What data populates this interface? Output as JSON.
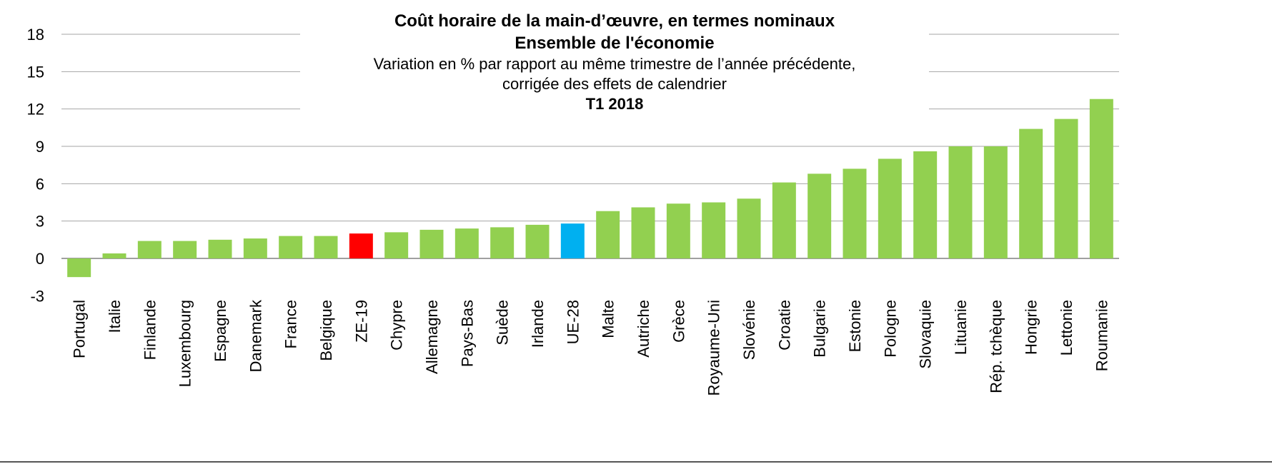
{
  "chart_data": {
    "type": "bar",
    "title": "Coût horaire de la main-d’œuvre, en termes nominaux",
    "subtitle_lines": [
      "Ensemble de l'économie",
      "Variation en % par rapport au même trimestre de l’année précédente,",
      "corrigée des effets de calendrier",
      "T1 2018"
    ],
    "categories": [
      "Portugal",
      "Italie",
      "Finlande",
      "Luxembourg",
      "Espagne",
      "Danemark",
      "France",
      "Belgique",
      "ZE-19",
      "Chypre",
      "Allemagne",
      "Pays-Bas",
      "Suède",
      "Irlande",
      "UE-28",
      "Malte",
      "Autriche",
      "Grèce",
      "Royaume-Uni",
      "Slovénie",
      "Croatie",
      "Bulgarie",
      "Estonie",
      "Pologne",
      "Slovaquie",
      "Lituanie",
      "Rép. tchèque",
      "Hongrie",
      "Lettonie",
      "Roumanie"
    ],
    "values": [
      -1.5,
      0.4,
      1.4,
      1.4,
      1.5,
      1.6,
      1.8,
      1.8,
      2.0,
      2.1,
      2.3,
      2.4,
      2.5,
      2.7,
      2.8,
      3.8,
      4.1,
      4.4,
      4.5,
      4.8,
      6.1,
      6.8,
      7.2,
      8.0,
      8.6,
      9.0,
      9.0,
      10.4,
      11.2,
      12.8
    ],
    "bar_colors": {
      "default": "#92d050",
      "ZE-19": "#ff0000",
      "UE-28": "#00b0f0"
    },
    "yticks": [
      "18",
      "15",
      "12",
      "9",
      "6",
      "3",
      "0",
      "-3"
    ],
    "ylim": [
      -3,
      18
    ],
    "xlabel": "",
    "ylabel": "",
    "grid": true,
    "legend": "none"
  }
}
